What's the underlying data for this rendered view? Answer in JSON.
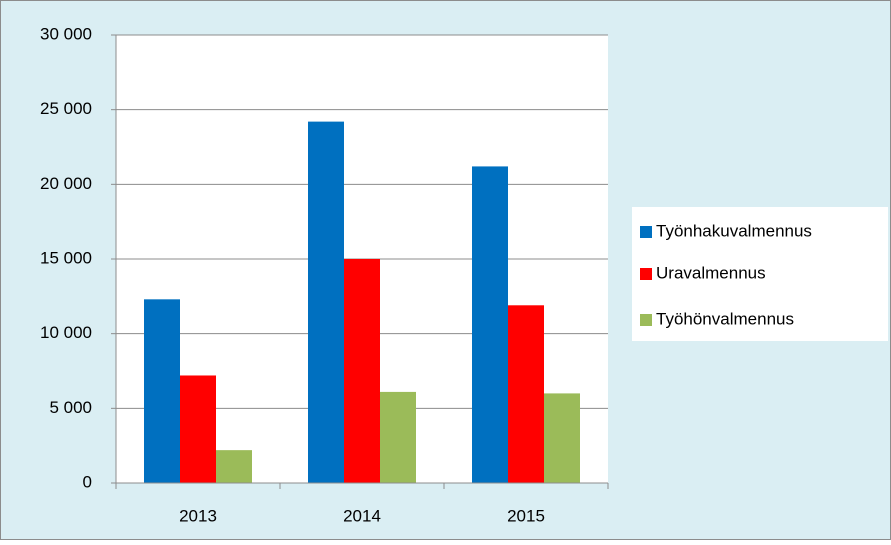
{
  "chart_data": {
    "type": "bar",
    "categories": [
      "2013",
      "2014",
      "2015"
    ],
    "series": [
      {
        "name": "Työnhakuvalmennus",
        "color": "#0070c0",
        "values": [
          12300,
          24200,
          21200
        ]
      },
      {
        "name": "Uravalmennus",
        "color": "#ff0000",
        "values": [
          7200,
          15000,
          11900
        ]
      },
      {
        "name": "Työhönvalmennus",
        "color": "#9bbb59",
        "values": [
          2200,
          6100,
          6000
        ]
      }
    ],
    "ylim": [
      0,
      30000
    ],
    "yticks": [
      0,
      {
        "value": 5000,
        "label": "5 000"
      },
      {
        "value": 10000,
        "label": "10 000"
      },
      {
        "value": 15000,
        "label": "15 000"
      },
      {
        "value": 20000,
        "label": "20 000"
      },
      {
        "value": 25000,
        "label": "25 000"
      },
      {
        "value": 30000,
        "label": "30 000"
      }
    ],
    "grid": true,
    "legend": "right"
  }
}
